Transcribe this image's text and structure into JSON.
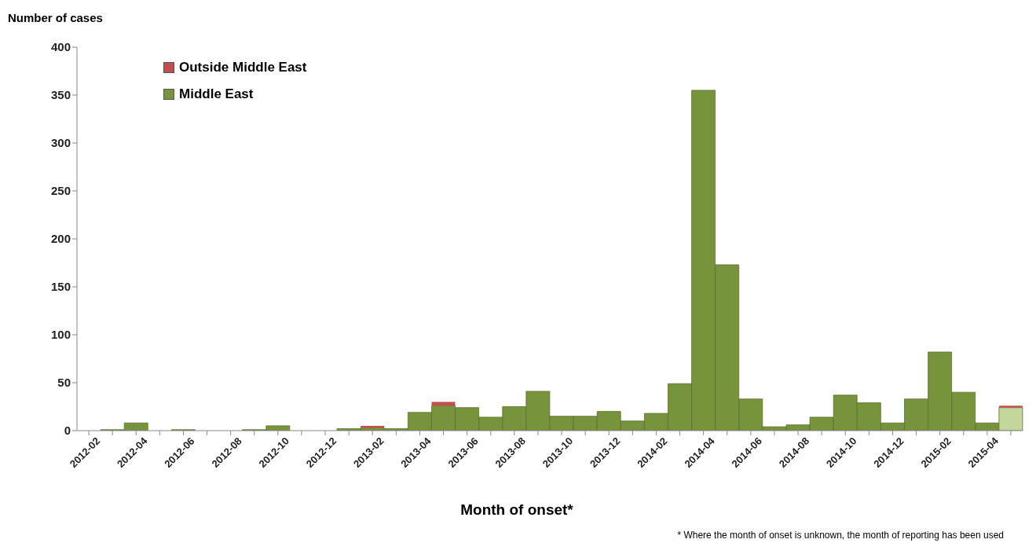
{
  "chart_data": {
    "type": "bar",
    "ylabel": "Number of cases",
    "xlabel": "Month of onset*",
    "annotations": [
      "* Where the month of onset is unknown, the month of reporting has been used"
    ],
    "categories": [
      "2012-02",
      null,
      "2012-04",
      null,
      "2012-06",
      null,
      "2012-08",
      null,
      "2012-10",
      null,
      "2012-12",
      null,
      "2013-02",
      null,
      "2013-04",
      null,
      "2013-06",
      null,
      "2013-08",
      null,
      "2013-10",
      null,
      "2013-12",
      null,
      "2014-02",
      null,
      "2014-04",
      null,
      "2014-06",
      null,
      "2014-08",
      null,
      "2014-10",
      null,
      "2014-12",
      null,
      "2015-02",
      null,
      "2015-04",
      null
    ],
    "series": [
      {
        "name": "Middle East",
        "color": "#77933c",
        "colors": [
          "#77933c",
          "#77933c",
          "#77933c",
          "#77933c",
          "#77933c",
          "#77933c",
          "#77933c",
          "#77933c",
          "#77933c",
          "#77933c",
          "#77933c",
          "#77933c",
          "#77933c",
          "#77933c",
          "#77933c",
          "#77933c",
          "#77933c",
          "#77933c",
          "#77933c",
          "#77933c",
          "#77933c",
          "#77933c",
          "#77933c",
          "#77933c",
          "#77933c",
          "#77933c",
          "#77933c",
          "#77933c",
          "#77933c",
          "#77933c",
          "#77933c",
          "#77933c",
          "#77933c",
          "#77933c",
          "#77933c",
          "#77933c",
          "#77933c",
          "#77933c",
          "#77933c",
          "#c3d69b"
        ],
        "values": [
          0,
          1,
          8,
          0,
          1,
          0,
          0,
          1,
          5,
          0,
          0,
          2,
          3,
          2,
          19,
          26,
          24,
          14,
          25,
          41,
          15,
          15,
          20,
          10,
          18,
          49,
          355,
          173,
          33,
          4,
          6,
          14,
          37,
          29,
          8,
          33,
          82,
          40,
          8,
          24
        ]
      },
      {
        "name": "Outside Middle East",
        "color": "#c0504d",
        "values": [
          0,
          0,
          0,
          0,
          0,
          0,
          0,
          0,
          0,
          0,
          0,
          0,
          2,
          0,
          0,
          4,
          0,
          0,
          0,
          0,
          0,
          0,
          0,
          0,
          0,
          0,
          0,
          0,
          0,
          0,
          0,
          0,
          0,
          0,
          0,
          0,
          0,
          0,
          0,
          2
        ]
      }
    ],
    "stacked": true,
    "ylim": [
      0,
      400
    ],
    "yticks": [
      0,
      50,
      100,
      150,
      200,
      250,
      300,
      350,
      400
    ],
    "grid": false,
    "legend": "top left"
  }
}
